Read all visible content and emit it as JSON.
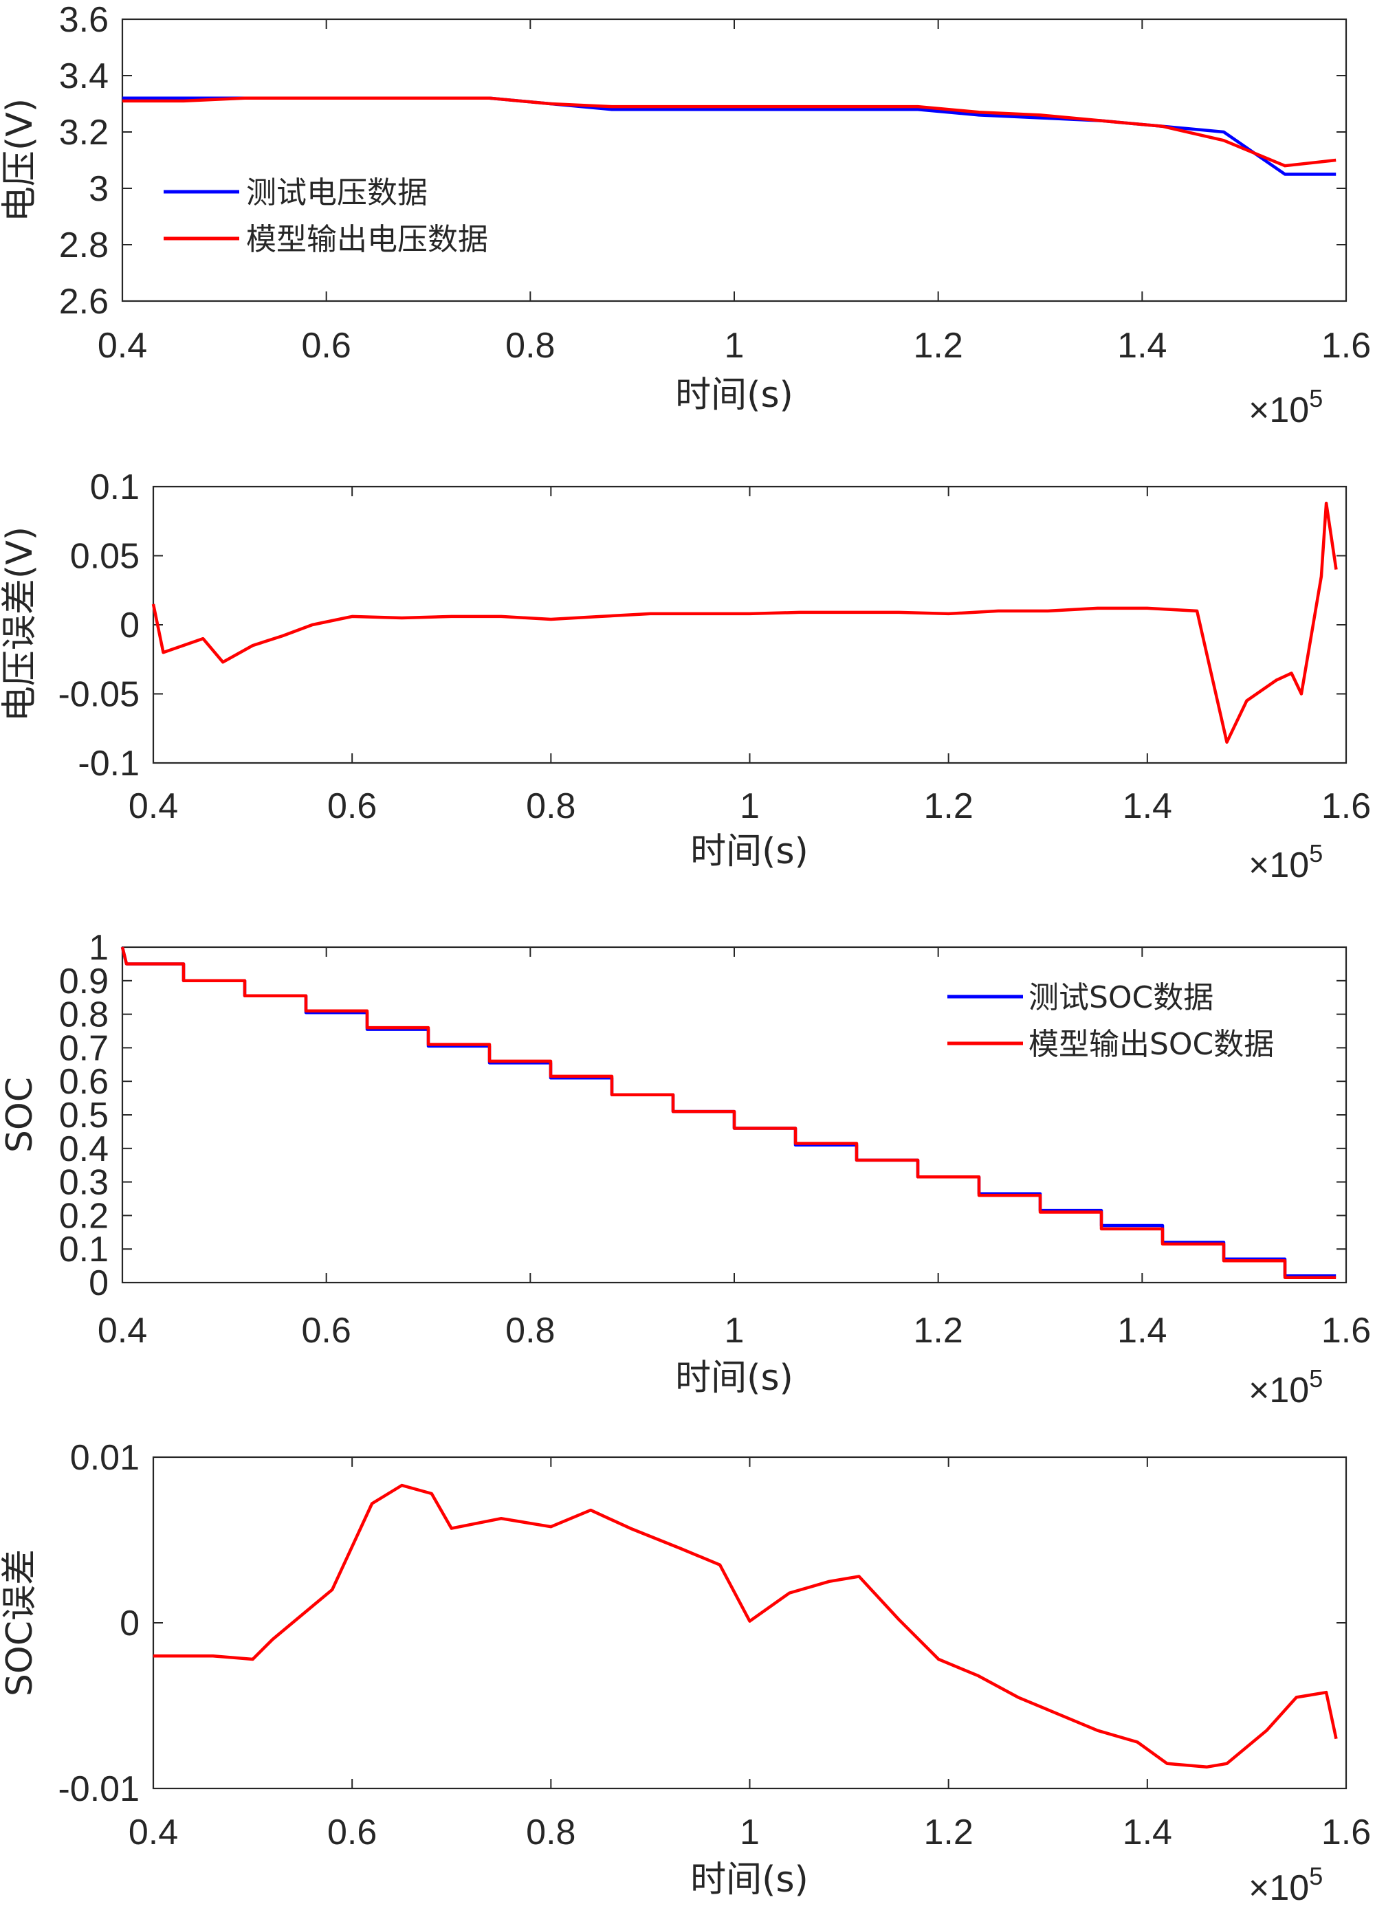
{
  "colors": {
    "test": "#0000ff",
    "model": "#ff0000",
    "axis": "#262626"
  },
  "chart_data": [
    {
      "type": "line",
      "title": "",
      "xlabel": "时间(s)",
      "ylabel": "电压(V)",
      "x_exponent": "10",
      "x_exponent_power": "5",
      "x_multiplier": "×",
      "xlim": [
        0.4,
        1.6
      ],
      "ylim": [
        2.6,
        3.6
      ],
      "xticks": [
        "0.4",
        "0.6",
        "0.8",
        "1",
        "1.2",
        "1.4",
        "1.6"
      ],
      "yticks": [
        "2.6",
        "2.8",
        "3",
        "3.2",
        "3.4",
        "3.6"
      ],
      "legend_position": "middle-left",
      "series": [
        {
          "name": "测试电压数据",
          "color": "#0000ff",
          "x": [
            0.4,
            0.46,
            0.52,
            0.58,
            0.64,
            0.7,
            0.76,
            0.82,
            0.88,
            0.94,
            1.0,
            1.06,
            1.12,
            1.18,
            1.24,
            1.3,
            1.36,
            1.42,
            1.48,
            1.54,
            1.59
          ],
          "y": [
            3.32,
            3.32,
            3.32,
            3.32,
            3.32,
            3.32,
            3.32,
            3.3,
            3.28,
            3.28,
            3.28,
            3.28,
            3.28,
            3.28,
            3.26,
            3.25,
            3.24,
            3.22,
            3.2,
            3.05,
            3.05
          ]
        },
        {
          "name": "模型输出电压数据",
          "color": "#ff0000",
          "x": [
            0.4,
            0.46,
            0.52,
            0.58,
            0.64,
            0.7,
            0.76,
            0.82,
            0.88,
            0.94,
            1.0,
            1.06,
            1.12,
            1.18,
            1.24,
            1.3,
            1.36,
            1.42,
            1.48,
            1.54,
            1.59
          ],
          "y": [
            3.31,
            3.31,
            3.32,
            3.32,
            3.32,
            3.32,
            3.32,
            3.3,
            3.29,
            3.29,
            3.29,
            3.29,
            3.29,
            3.29,
            3.27,
            3.26,
            3.24,
            3.22,
            3.17,
            3.08,
            3.1
          ]
        }
      ]
    },
    {
      "type": "line",
      "title": "",
      "xlabel": "时间(s)",
      "ylabel": "电压误差(V)",
      "x_exponent": "10",
      "x_exponent_power": "5",
      "x_multiplier": "×",
      "xlim": [
        0.4,
        1.6
      ],
      "ylim": [
        -0.1,
        0.1
      ],
      "xticks": [
        "0.4",
        "0.6",
        "0.8",
        "1",
        "1.2",
        "1.4",
        "1.6"
      ],
      "yticks": [
        "-0.1",
        "-0.05",
        "0",
        "0.05",
        "0.1"
      ],
      "series": [
        {
          "name": "电压误差",
          "color": "#ff0000",
          "x": [
            0.4,
            0.41,
            0.45,
            0.47,
            0.5,
            0.53,
            0.56,
            0.6,
            0.65,
            0.7,
            0.75,
            0.8,
            0.85,
            0.9,
            0.95,
            1.0,
            1.05,
            1.1,
            1.15,
            1.2,
            1.25,
            1.3,
            1.35,
            1.4,
            1.45,
            1.48,
            1.5,
            1.53,
            1.545,
            1.555,
            1.575,
            1.58,
            1.59
          ],
          "y": [
            0.015,
            -0.02,
            -0.01,
            -0.027,
            -0.015,
            -0.008,
            0.0,
            0.006,
            0.005,
            0.006,
            0.006,
            0.004,
            0.006,
            0.008,
            0.008,
            0.008,
            0.009,
            0.009,
            0.009,
            0.008,
            0.01,
            0.01,
            0.012,
            0.012,
            0.01,
            -0.085,
            -0.055,
            -0.04,
            -0.035,
            -0.05,
            0.035,
            0.088,
            0.04
          ]
        }
      ]
    },
    {
      "type": "line",
      "title": "",
      "xlabel": "时间(s)",
      "ylabel": "SOC",
      "x_exponent": "10",
      "x_exponent_power": "5",
      "x_multiplier": "×",
      "xlim": [
        0.4,
        1.6
      ],
      "ylim": [
        0,
        1
      ],
      "xticks": [
        "0.4",
        "0.6",
        "0.8",
        "1",
        "1.2",
        "1.4",
        "1.6"
      ],
      "yticks": [
        "0",
        "0.1",
        "0.2",
        "0.3",
        "0.4",
        "0.5",
        "0.6",
        "0.7",
        "0.8",
        "0.9",
        "1"
      ],
      "legend_position": "top-right",
      "series": [
        {
          "name": "测试SOC数据",
          "color": "#0000ff",
          "steps_x": [
            0.4,
            0.46,
            0.52,
            0.58,
            0.64,
            0.7,
            0.76,
            0.82,
            0.88,
            0.94,
            1.0,
            1.06,
            1.12,
            1.18,
            1.24,
            1.3,
            1.36,
            1.42,
            1.48,
            1.54,
            1.59
          ],
          "y": [
            0.95,
            0.9,
            0.855,
            0.805,
            0.755,
            0.705,
            0.655,
            0.61,
            0.56,
            0.51,
            0.46,
            0.41,
            0.365,
            0.315,
            0.265,
            0.215,
            0.17,
            0.12,
            0.07,
            0.02,
            0.02
          ]
        },
        {
          "name": "模型输出SOC数据",
          "color": "#ff0000",
          "steps_x": [
            0.4,
            0.46,
            0.52,
            0.58,
            0.64,
            0.7,
            0.76,
            0.82,
            0.88,
            0.94,
            1.0,
            1.06,
            1.12,
            1.18,
            1.24,
            1.3,
            1.36,
            1.42,
            1.48,
            1.54,
            1.59
          ],
          "y": [
            0.95,
            0.9,
            0.855,
            0.81,
            0.76,
            0.71,
            0.66,
            0.615,
            0.56,
            0.51,
            0.46,
            0.415,
            0.365,
            0.315,
            0.26,
            0.21,
            0.16,
            0.115,
            0.065,
            0.015,
            0.015
          ]
        }
      ]
    },
    {
      "type": "line",
      "title": "",
      "xlabel": "时间(s)",
      "ylabel": "SOC误差",
      "x_exponent": "10",
      "x_exponent_power": "5",
      "x_multiplier": "×",
      "xlim": [
        0.4,
        1.6
      ],
      "ylim": [
        -0.01,
        0.01
      ],
      "xticks": [
        "0.4",
        "0.6",
        "0.8",
        "1",
        "1.2",
        "1.4",
        "1.6"
      ],
      "yticks": [
        "-0.01",
        "0",
        "0.01"
      ],
      "series": [
        {
          "name": "SOC误差",
          "color": "#ff0000",
          "x": [
            0.4,
            0.46,
            0.5,
            0.52,
            0.56,
            0.58,
            0.62,
            0.65,
            0.68,
            0.7,
            0.75,
            0.8,
            0.84,
            0.88,
            0.93,
            0.97,
            1.0,
            1.04,
            1.08,
            1.11,
            1.15,
            1.19,
            1.23,
            1.27,
            1.31,
            1.35,
            1.39,
            1.42,
            1.46,
            1.48,
            1.52,
            1.55,
            1.58,
            1.59
          ],
          "y": [
            -0.002,
            -0.002,
            -0.0022,
            -0.001,
            0.001,
            0.002,
            0.0072,
            0.0083,
            0.0078,
            0.0057,
            0.0063,
            0.0058,
            0.0068,
            0.0057,
            0.0045,
            0.0035,
            0.0001,
            0.0018,
            0.0025,
            0.0028,
            0.0002,
            -0.0022,
            -0.0032,
            -0.0045,
            -0.0055,
            -0.0065,
            -0.0072,
            -0.0085,
            -0.0087,
            -0.0085,
            -0.0065,
            -0.0045,
            -0.0042,
            -0.007
          ]
        }
      ]
    }
  ]
}
